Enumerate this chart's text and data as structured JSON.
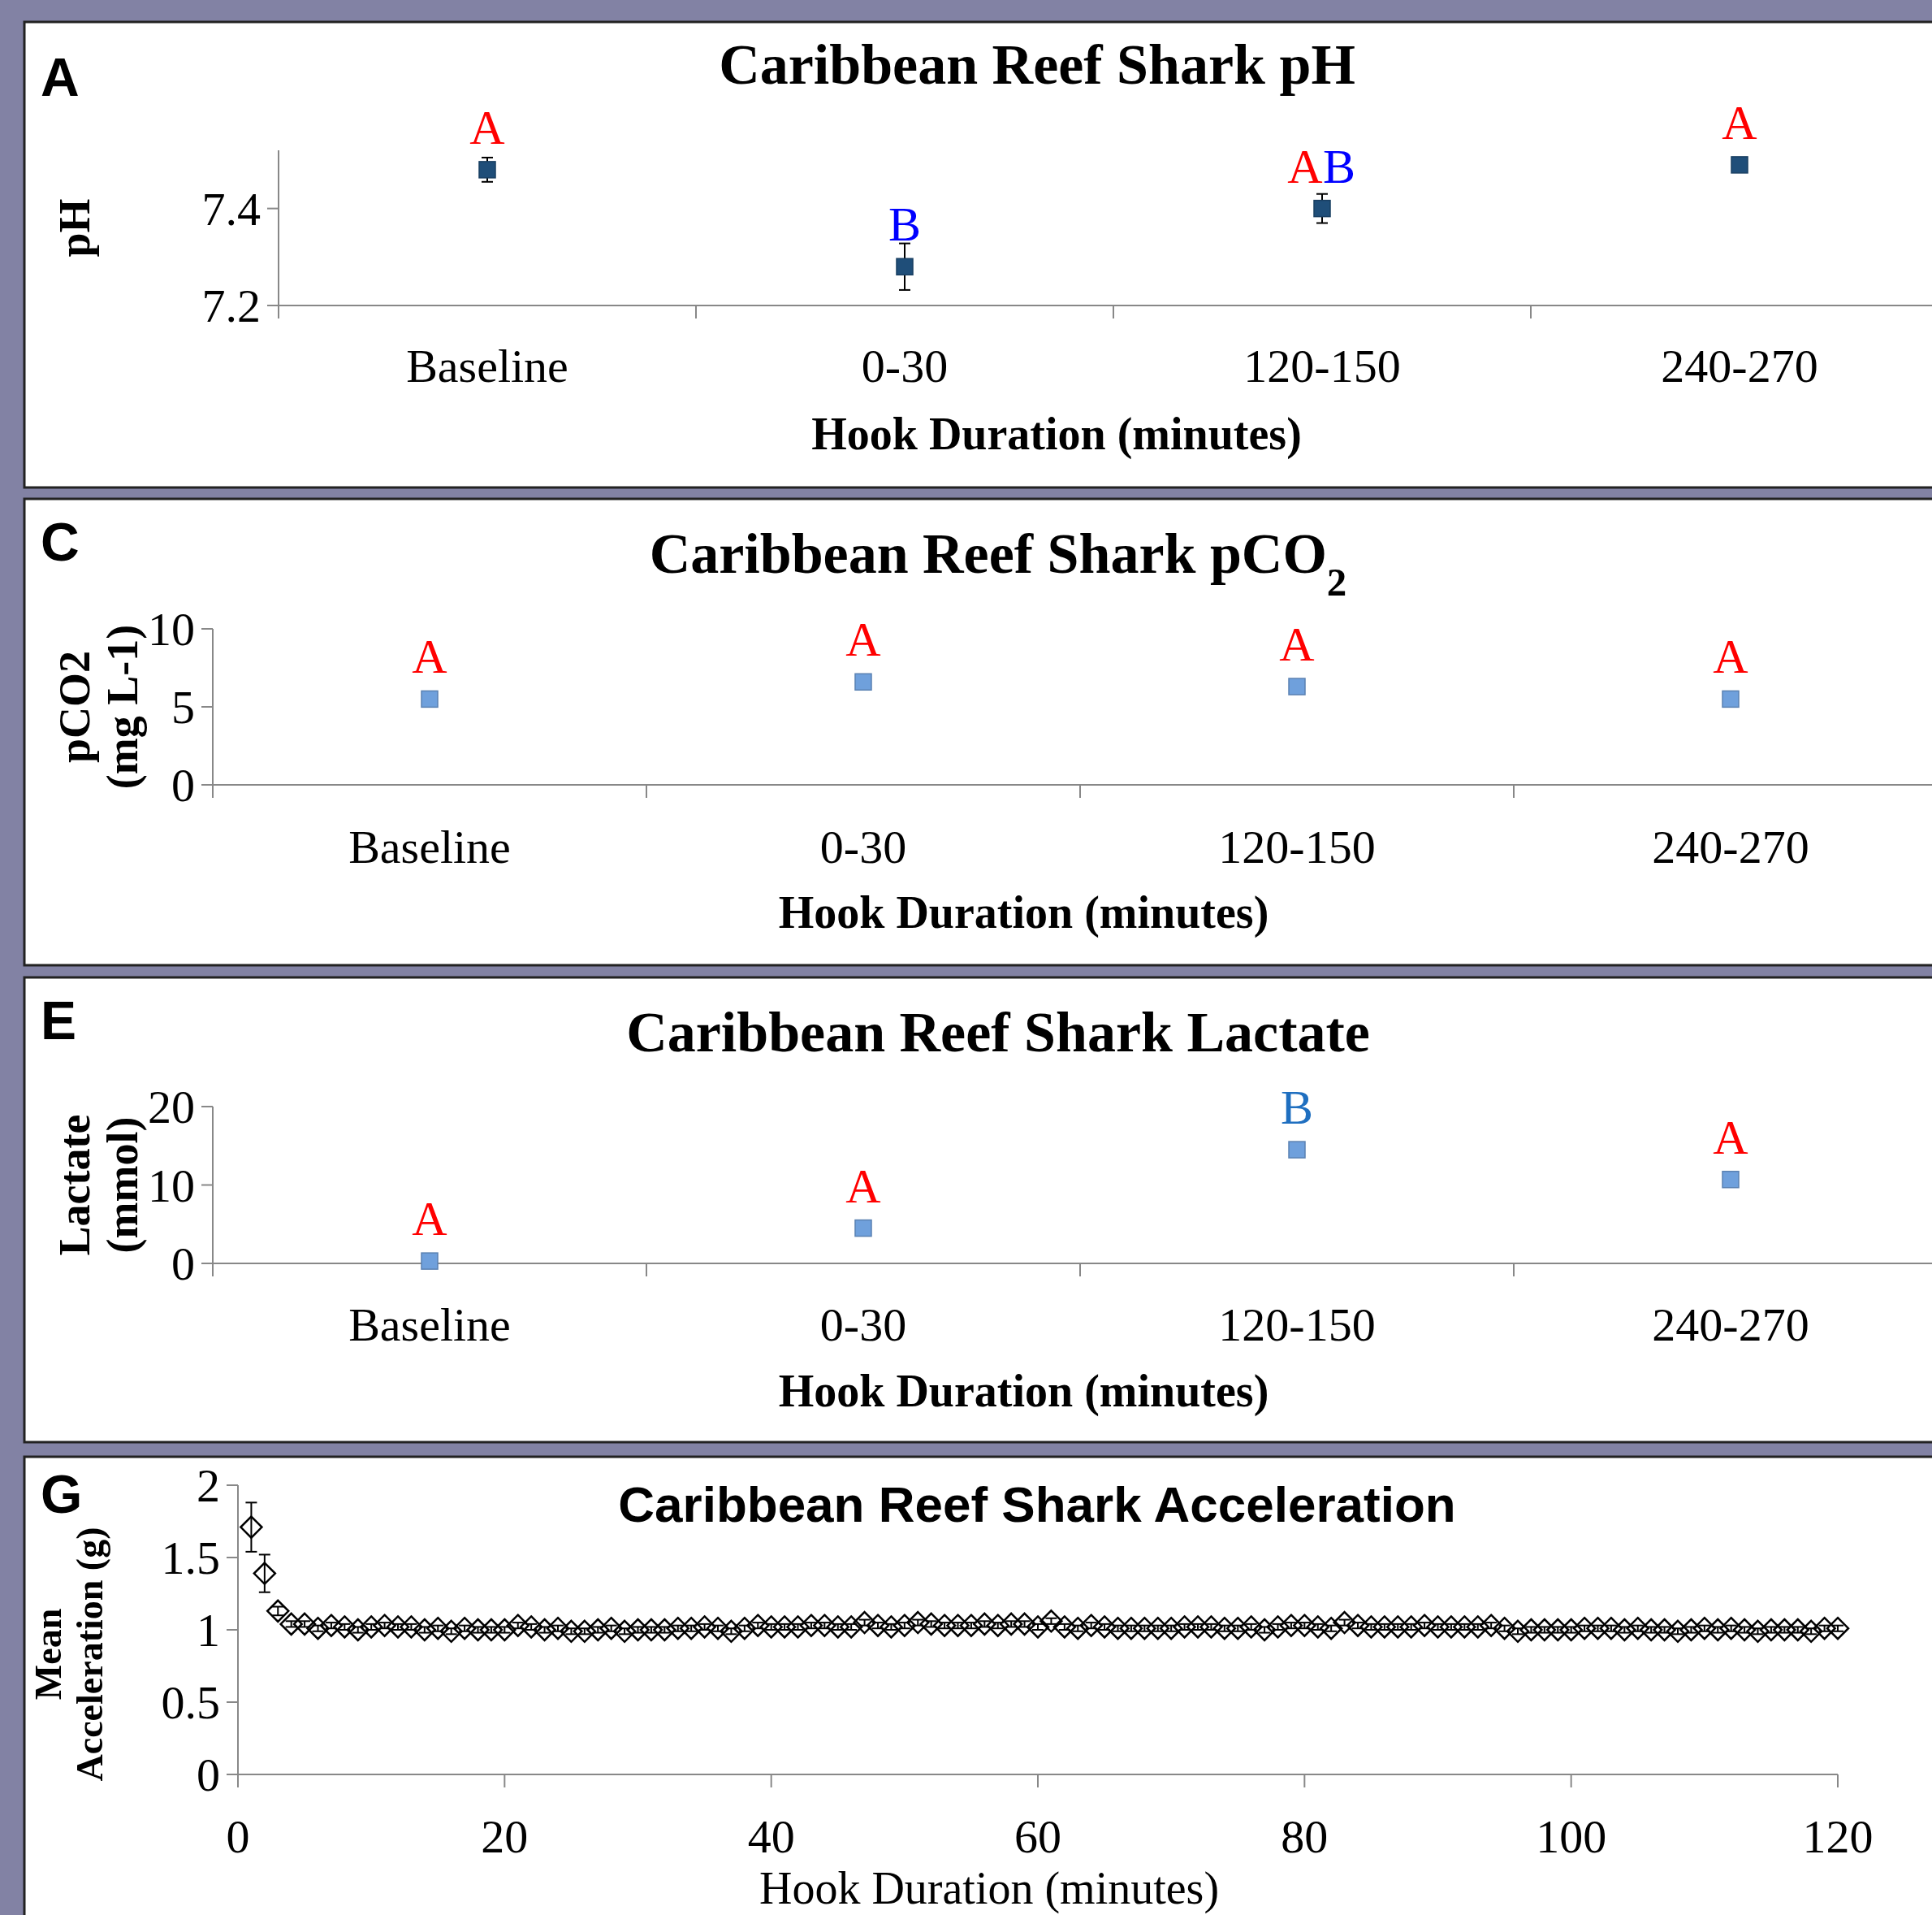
{
  "chart_data": [
    {
      "type": "scatter",
      "title": "Caribbean Reef Shark pH",
      "xlabel": "Hook Duration (minutes)",
      "ylabel": "pH",
      "categories": [
        "Baseline",
        "0-30",
        "120-150",
        "240-270"
      ],
      "ylim": [
        7.2,
        7.52
      ],
      "yticks": [
        7.2,
        7.4
      ],
      "marker": "square",
      "series": [
        {
          "color": "#1f4e79",
          "values": [
            7.48,
            7.28,
            7.4,
            7.49
          ],
          "errors": [
            0.025,
            0.048,
            0.03,
            null
          ]
        }
      ],
      "annotations": [
        "A",
        {
          "text": "A",
          "x": "Baseline",
          "y": 7.48
        },
        {
          "text": "B",
          "x": "0-30",
          "y": 7.28
        },
        {
          "text": "A",
          "x": "120-150",
          "y": 7.4
        },
        {
          "text": "B",
          "x": "120-150",
          "y": 7.4
        },
        {
          "text": "A",
          "x": "240-270",
          "y": 7.49
        }
      ]
    },
    {
      "type": "scatter",
      "title": "Caribbean Reef Shark pCO$_{2}$",
      "xlabel": "Hook Duration (minutes)",
      "ylabel": "pCO2 (mg L-1)",
      "categories": [
        "Baseline",
        "0-30",
        "120-150",
        "240-270"
      ],
      "ylim": [
        0,
        10
      ],
      "yticks": [
        0,
        5,
        10
      ],
      "marker": "square",
      "series": [
        {
          "color": "#6fa0dc",
          "values": [
            5.5,
            6.6,
            6.3,
            5.5
          ]
        }
      ],
      "annotations": [
        "C",
        {
          "text": "A",
          "x": "Baseline",
          "y": 5.5
        },
        {
          "text": "A",
          "x": "0-30",
          "y": 6.6
        },
        {
          "text": "A",
          "x": "120-150",
          "y": 6.3
        },
        {
          "text": "A",
          "x": "240-270",
          "y": 5.5
        }
      ]
    },
    {
      "type": "scatter",
      "title": "Caribbean Reef Shark Lactate",
      "xlabel": "Hook Duration (minutes)",
      "ylabel": "Lactate (mmol)",
      "categories": [
        "Baseline",
        "0-30",
        "120-150",
        "240-270"
      ],
      "ylim": [
        0,
        20
      ],
      "yticks": [
        0,
        10,
        20
      ],
      "marker": "square",
      "series": [
        {
          "color": "#6fa0dc",
          "values": [
            0.3,
            4.5,
            14.5,
            10.7
          ]
        }
      ],
      "annotations": [
        "E",
        {
          "text": "A",
          "x": "Baseline",
          "y": 0.3
        },
        {
          "text": "A",
          "x": "0-30",
          "y": 4.5
        },
        {
          "text": "B",
          "x": "120-150",
          "y": 14.5
        },
        {
          "text": "A",
          "x": "240-270",
          "y": 10.7
        }
      ]
    },
    {
      "type": "scatter",
      "title": "Caribbean Reef Shark Acceleration",
      "xlabel": "Hook Duration (minutes)",
      "ylabel": "Mean Acceleration (g)",
      "xlim": [
        0,
        120
      ],
      "xticks": [
        0,
        20,
        40,
        60,
        80,
        100,
        120
      ],
      "ylim": [
        0,
        2
      ],
      "yticks": [
        0,
        0.5,
        1,
        1.5,
        2
      ],
      "marker": "diamond",
      "series": [
        {
          "color": "#000000",
          "x": [
            1,
            2,
            3,
            4,
            5,
            6,
            7,
            8,
            9,
            10,
            11,
            12,
            13,
            14,
            15,
            16,
            17,
            18,
            19,
            20,
            21,
            22,
            23,
            24,
            25,
            26,
            27,
            28,
            29,
            30,
            31,
            32,
            33,
            34,
            35,
            36,
            37,
            38,
            39,
            40,
            41,
            42,
            43,
            44,
            45,
            46,
            47,
            48,
            49,
            50,
            51,
            52,
            53,
            54,
            55,
            56,
            57,
            58,
            59,
            60,
            61,
            62,
            63,
            64,
            65,
            66,
            67,
            68,
            69,
            70,
            71,
            72,
            73,
            74,
            75,
            76,
            77,
            78,
            79,
            80,
            81,
            82,
            83,
            84,
            85,
            86,
            87,
            88,
            89,
            90,
            91,
            92,
            93,
            94,
            95,
            96,
            97,
            98,
            99,
            100,
            101,
            102,
            103,
            104,
            105,
            106,
            107,
            108,
            109,
            110,
            111,
            112,
            113,
            114,
            115,
            116,
            117,
            118,
            119,
            120
          ],
          "values": [
            1.71,
            1.39,
            1.13,
            1.04,
            1.04,
            1.01,
            1.03,
            1.02,
            1.0,
            1.02,
            1.03,
            1.02,
            1.02,
            1.0,
            1.01,
            0.99,
            1.01,
            1.0,
            1.0,
            1.0,
            1.03,
            1.02,
            1.0,
            1.01,
            0.99,
            0.99,
            1.0,
            1.01,
            0.99,
            1.0,
            1.0,
            1.0,
            1.01,
            1.01,
            1.02,
            1.01,
            0.99,
            1.01,
            1.03,
            1.02,
            1.02,
            1.02,
            1.03,
            1.03,
            1.02,
            1.02,
            1.05,
            1.03,
            1.02,
            1.03,
            1.05,
            1.04,
            1.03,
            1.03,
            1.03,
            1.04,
            1.03,
            1.04,
            1.04,
            1.02,
            1.06,
            1.02,
            1.01,
            1.03,
            1.02,
            1.01,
            1.01,
            1.01,
            1.01,
            1.01,
            1.02,
            1.02,
            1.02,
            1.01,
            1.01,
            1.02,
            1.0,
            1.02,
            1.03,
            1.03,
            1.02,
            1.01,
            1.05,
            1.03,
            1.02,
            1.02,
            1.02,
            1.02,
            1.03,
            1.02,
            1.02,
            1.02,
            1.02,
            1.03,
            1.01,
            0.99,
            1.0,
            1.0,
            1.0,
            1.0,
            1.01,
            1.01,
            1.01,
            1.0,
            1.01,
            1.0,
            1.0,
            0.99,
            1.0,
            1.01,
            1.0,
            1.01,
            1.0,
            0.99,
            1.0,
            1.0,
            1.0,
            0.99,
            1.01,
            1.01
          ],
          "errors": [
            0.17,
            0.13,
            0.03,
            0.02,
            0.02,
            0.02,
            0.02,
            0.02,
            0.02,
            0.02,
            0.02,
            0.02,
            0.02,
            0.02,
            0.02,
            0.02,
            0.02,
            0.02,
            0.02,
            0.02,
            0.02,
            0.02,
            0.02,
            0.02,
            0.02,
            0.02,
            0.02,
            0.02,
            0.02,
            0.02,
            0.02,
            0.02,
            0.02,
            0.02,
            0.02,
            0.02,
            0.02,
            0.02,
            0.02,
            0.02,
            0.02,
            0.02,
            0.02,
            0.02,
            0.02,
            0.02,
            0.02,
            0.02,
            0.02,
            0.02,
            0.02,
            0.02,
            0.02,
            0.02,
            0.02,
            0.02,
            0.02,
            0.02,
            0.02,
            0.02,
            0.02,
            0.02,
            0.02,
            0.02,
            0.02,
            0.02,
            0.02,
            0.02,
            0.02,
            0.02,
            0.02,
            0.02,
            0.02,
            0.02,
            0.02,
            0.02,
            0.02,
            0.02,
            0.02,
            0.02,
            0.02,
            0.02,
            0.02,
            0.02,
            0.02,
            0.02,
            0.02,
            0.02,
            0.02,
            0.02,
            0.02,
            0.02,
            0.02,
            0.02,
            0.02,
            0.02,
            0.02,
            0.02,
            0.02,
            0.02,
            0.02,
            0.02,
            0.02,
            0.02,
            0.02,
            0.02,
            0.02,
            0.02,
            0.02,
            0.02,
            0.02,
            0.02,
            0.02,
            0.02,
            0.02,
            0.02,
            0.02,
            0.02,
            0.02,
            0.02
          ]
        }
      ],
      "annotations": [
        "G"
      ]
    }
  ]
}
